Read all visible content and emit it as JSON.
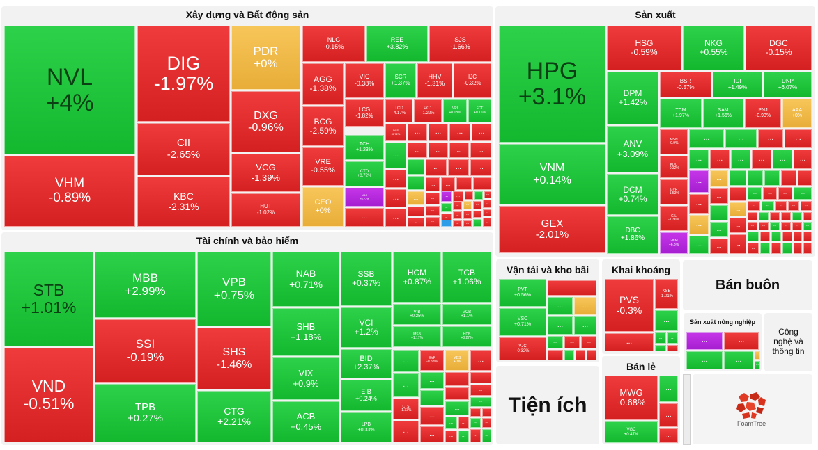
{
  "groups": {
    "construction": "Xây dựng và Bất động sản",
    "manufacturing": "Sản xuất",
    "finance": "Tài chính và bảo hiểm",
    "transport": "Vận tải và kho bãi",
    "mining": "Khai khoáng",
    "wholesale": "Bán buôn",
    "agriculture": "Sản xuất nông nghiệp",
    "it": "Công nghệ và thông tin",
    "utilities": "Tiện ích",
    "retail": "Bán lẻ"
  },
  "logo_text": "FoamTree",
  "colors": {
    "up": "#1fc33c",
    "down": "#e02c2c",
    "flat": "#f0b848",
    "ceiling": "#b52ad8",
    "floor": "#2e9de8"
  },
  "tiles": {
    "NVL": {
      "sym": "NVL",
      "chg": "+4%"
    },
    "VHM": {
      "sym": "VHM",
      "chg": "-0.89%"
    },
    "DIG": {
      "sym": "DIG",
      "chg": "-1.97%"
    },
    "CII": {
      "sym": "CII",
      "chg": "-2.65%"
    },
    "KBC": {
      "sym": "KBC",
      "chg": "-2.31%"
    },
    "PDR": {
      "sym": "PDR",
      "chg": "+0%"
    },
    "DXG": {
      "sym": "DXG",
      "chg": "-0.96%"
    },
    "VCG": {
      "sym": "VCG",
      "chg": "-1.39%"
    },
    "HUT": {
      "sym": "HUT",
      "chg": "-1.02%"
    },
    "NLG": {
      "sym": "NLG",
      "chg": "-0.15%"
    },
    "REE": {
      "sym": "REE",
      "chg": "+3.82%"
    },
    "SJS": {
      "sym": "SJS",
      "chg": "-1.66%"
    },
    "AGG": {
      "sym": "AGG",
      "chg": "-1.38%"
    },
    "VIC": {
      "sym": "VIC",
      "chg": "-0.38%"
    },
    "SCR": {
      "sym": "SCR",
      "chg": "+1.37%"
    },
    "HHV": {
      "sym": "HHV",
      "chg": "-1.31%"
    },
    "IJC": {
      "sym": "IJC",
      "chg": "-0.32%"
    },
    "BCG": {
      "sym": "BCG",
      "chg": "-2.59%"
    },
    "LCG": {
      "sym": "LCG",
      "chg": "-1.82%"
    },
    "TCD": {
      "sym": "TCD",
      "chg": "-4.17%"
    },
    "PC1": {
      "sym": "PC1",
      "chg": "-1.22%"
    },
    "VPI": {
      "sym": "VPI",
      "chg": "+0.18%"
    },
    "FCT": {
      "sym": "FCT",
      "chg": "+0.16%"
    },
    "DXS": {
      "sym": "DXS",
      "chg": "-0.72%"
    },
    "VRE": {
      "sym": "VRE",
      "chg": "-0.55%"
    },
    "TCH": {
      "sym": "TCH",
      "chg": "+1.23%"
    },
    "CTD": {
      "sym": "CTD",
      "chg": "+0.72%"
    },
    "CEO": {
      "sym": "CEO",
      "chg": "+0%"
    },
    "NBC": {
      "sym": "NBC",
      "chg": "+6.77%"
    },
    "HPG": {
      "sym": "HPG",
      "chg": "+3.1%"
    },
    "VNM": {
      "sym": "VNM",
      "chg": "+0.14%"
    },
    "GEX": {
      "sym": "GEX",
      "chg": "-2.01%"
    },
    "HSG": {
      "sym": "HSG",
      "chg": "-0.59%"
    },
    "NKG": {
      "sym": "NKG",
      "chg": "+0.55%"
    },
    "DGC": {
      "sym": "DGC",
      "chg": "-0.15%"
    },
    "DPM": {
      "sym": "DPM",
      "chg": "+1.42%"
    },
    "BSR": {
      "sym": "BSR",
      "chg": "-0.57%"
    },
    "IDI": {
      "sym": "IDI",
      "chg": "+1.49%"
    },
    "DNP": {
      "sym": "DNP",
      "chg": "+6.07%"
    },
    "TCM": {
      "sym": "TCM",
      "chg": "+1.97%"
    },
    "SAM": {
      "sym": "SAM",
      "chg": "+1.56%"
    },
    "PNJ": {
      "sym": "PNJ",
      "chg": "-0.93%"
    },
    "AAA": {
      "sym": "AAA",
      "chg": "+0%"
    },
    "ANV": {
      "sym": "ANV",
      "chg": "+3.09%"
    },
    "MSN": {
      "sym": "MSN",
      "chg": "-0.9%"
    },
    "KDC": {
      "sym": "KDC",
      "chg": "-0.32%"
    },
    "DCM": {
      "sym": "DCM",
      "chg": "+0.74%"
    },
    "GVR": {
      "sym": "GVR",
      "chg": "-1.53%"
    },
    "GIL": {
      "sym": "GIL",
      "chg": "-1.36%"
    },
    "DBC": {
      "sym": "DBC",
      "chg": "+1.86%"
    },
    "GKM": {
      "sym": "GKM",
      "chg": "+6.8%"
    },
    "STB": {
      "sym": "STB",
      "chg": "+1.01%"
    },
    "VND": {
      "sym": "VND",
      "chg": "-0.51%"
    },
    "MBB": {
      "sym": "MBB",
      "chg": "+2.99%"
    },
    "SSI": {
      "sym": "SSI",
      "chg": "-0.19%"
    },
    "TPB": {
      "sym": "TPB",
      "chg": "+0.27%"
    },
    "VPB": {
      "sym": "VPB",
      "chg": "+0.75%"
    },
    "SHS": {
      "sym": "SHS",
      "chg": "-1.46%"
    },
    "CTG": {
      "sym": "CTG",
      "chg": "+2.21%"
    },
    "NAB": {
      "sym": "NAB",
      "chg": "+0.71%"
    },
    "SHB": {
      "sym": "SHB",
      "chg": "+1.18%"
    },
    "VIX": {
      "sym": "VIX",
      "chg": "+0.9%"
    },
    "ACB": {
      "sym": "ACB",
      "chg": "+0.45%"
    },
    "SSB": {
      "sym": "SSB",
      "chg": "+0.37%"
    },
    "VCI": {
      "sym": "VCI",
      "chg": "+1.2%"
    },
    "BID": {
      "sym": "BID",
      "chg": "+2.37%"
    },
    "EIB": {
      "sym": "EIB",
      "chg": "+0.24%"
    },
    "LPB": {
      "sym": "LPB",
      "chg": "+0.33%"
    },
    "HCM": {
      "sym": "HCM",
      "chg": "+0.87%"
    },
    "TCB": {
      "sym": "TCB",
      "chg": "+1.06%"
    },
    "VIB": {
      "sym": "VIB",
      "chg": "+0.25%"
    },
    "VCB": {
      "sym": "VCB",
      "chg": "+1.1%"
    },
    "MSB": {
      "sym": "MSB",
      "chg": "+1.17%"
    },
    "HDB": {
      "sym": "HDB",
      "chg": "+0.27%"
    },
    "EVF": {
      "sym": "EVF",
      "chg": "-0.88%"
    },
    "MBS": {
      "sym": "MBS",
      "chg": "+0%"
    },
    "CTS": {
      "sym": "CTS",
      "chg": "-1.33%"
    },
    "PVT": {
      "sym": "PVT",
      "chg": "+0.56%"
    },
    "VSC": {
      "sym": "VSC",
      "chg": "+0.71%"
    },
    "VJC": {
      "sym": "VJC",
      "chg": "-0.32%"
    },
    "PVS": {
      "sym": "PVS",
      "chg": "-0.3%"
    },
    "KSB": {
      "sym": "KSB",
      "chg": "-1.01%"
    },
    "MWG": {
      "sym": "MWG",
      "chg": "-0.68%"
    },
    "VGC": {
      "sym": "VGC",
      "chg": "+0.47%"
    },
    "more": "..."
  }
}
